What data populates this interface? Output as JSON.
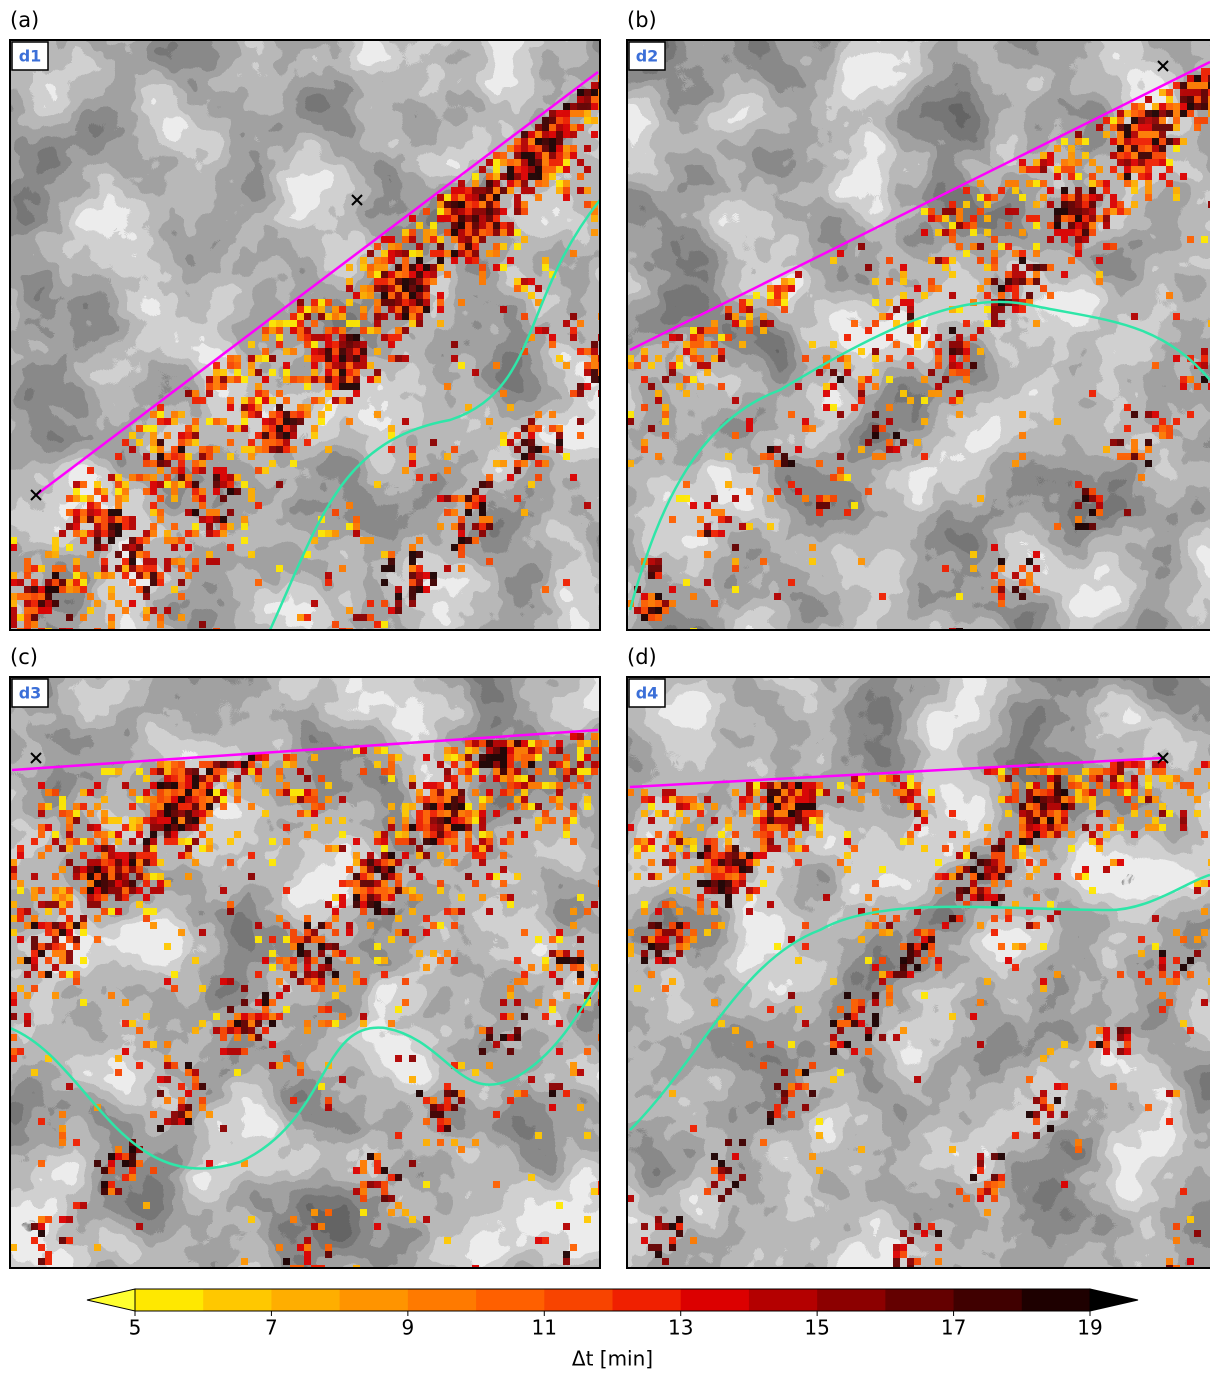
{
  "panels": [
    {
      "label": "(a)",
      "domain": "d1"
    },
    {
      "label": "(b)",
      "domain": "d2"
    },
    {
      "label": "(c)",
      "domain": "d3"
    },
    {
      "label": "(d)",
      "domain": "d4"
    }
  ],
  "colorbar": {
    "label": "Δt [min]",
    "lim": [
      5,
      19
    ],
    "ticks": [
      5,
      7,
      9,
      11,
      13,
      15,
      17,
      19
    ],
    "colors": [
      "#ffe800",
      "#ffc800",
      "#ffae00",
      "#ff9400",
      "#ff7a00",
      "#ff6000",
      "#f84400",
      "#f02000",
      "#dc0000",
      "#b40000",
      "#8c0000",
      "#640000",
      "#400000",
      "#1e0000"
    ],
    "under": "#ffff30",
    "over": "#000000"
  }
}
